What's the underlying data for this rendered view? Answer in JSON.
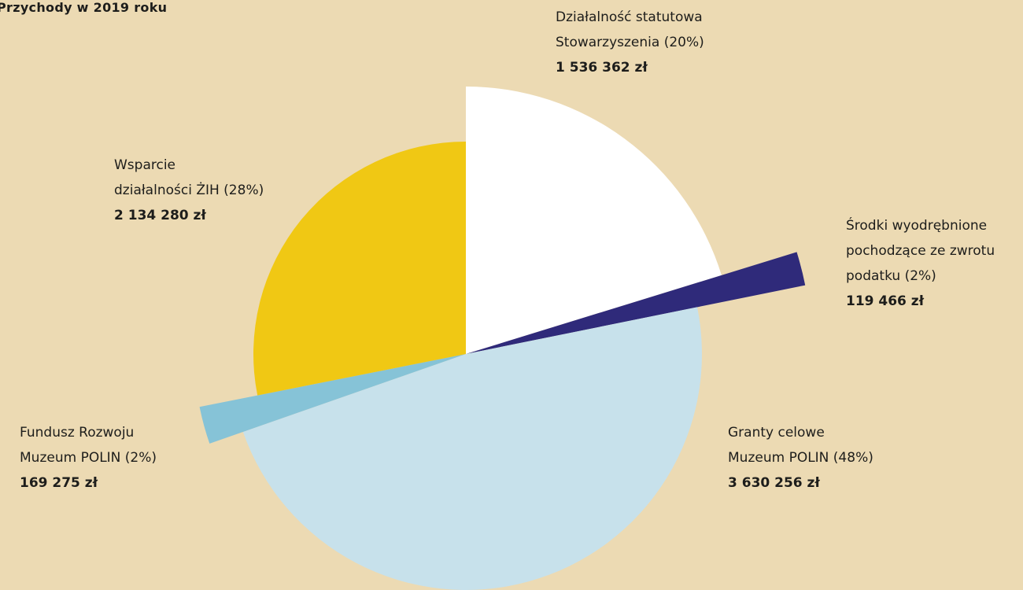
{
  "chart_data": {
    "type": "pie",
    "title": "Przychody w 2019 roku",
    "categories": [
      "Działalność statutowa\nStowarzyszenia (20%)",
      "Środki wyodrębnione\npochodzące ze zwrotu\npodatku (2%)",
      "Granty celowe\nMuzeum POLIN (48%)",
      "Fundusz Rozwoju\nMuzeum POLIN (2%)",
      "Wsparcie\ndziałalności ŻIH (28%)"
    ],
    "values": [
      1536362,
      119466,
      3630256,
      169275,
      2134280
    ],
    "value_labels": [
      "1 536 362 zł",
      "119 466 zł",
      "3 630 256 zł",
      "169 275 zł",
      "2 134 280 zł"
    ],
    "colors": [
      "#ffffff",
      "#2f2a7a",
      "#c7e1eb",
      "#86c3d7",
      "#f0c814"
    ]
  }
}
